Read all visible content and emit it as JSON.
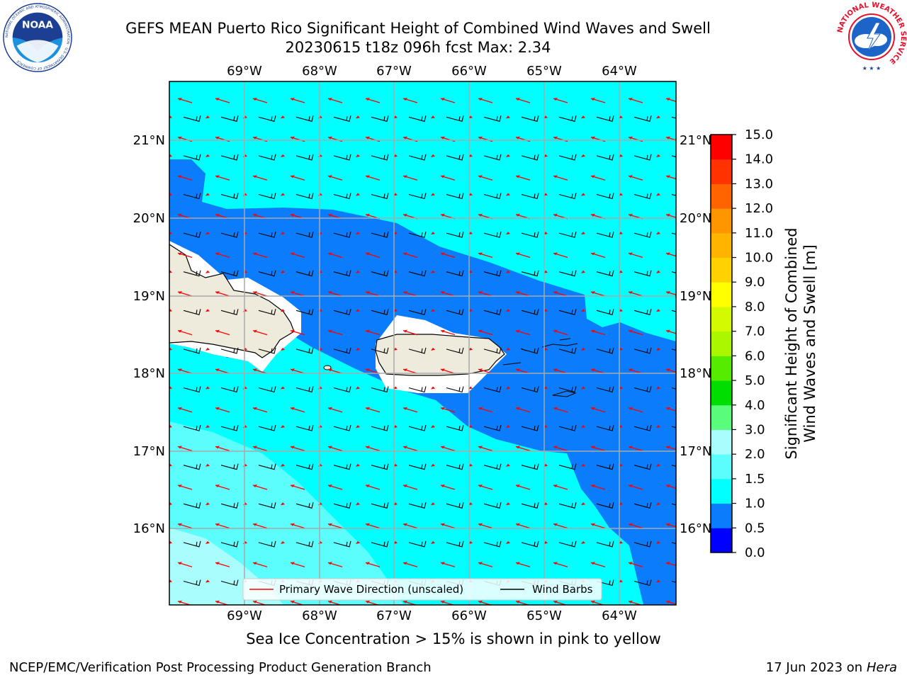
{
  "header": {
    "title_line_1": "GEFS MEAN Puerto Rico Significant Height of Combined Wind Waves and Swell",
    "title_line_2": "20230615 t18z 096h fcst   Max: 2.34"
  },
  "map": {
    "lon_ticks": [
      "69°W",
      "68°W",
      "67°W",
      "66°W",
      "65°W",
      "64°W"
    ],
    "lat_ticks": [
      "21°N",
      "20°N",
      "19°N",
      "18°N",
      "17°N",
      "16°N"
    ],
    "legend": {
      "wave_direction": "Primary Wave Direction (unscaled)",
      "wind_barbs": "Wind Barbs"
    },
    "colors": {
      "ocean_band_cyan": "#00ffff",
      "ocean_band_blue": "#0a7cfc",
      "ocean_band_light": "#aafdfd",
      "land": "#efebdc",
      "grid": "#aaaaaa",
      "wave_arrow": "#ff0000",
      "wind_barb": "#000000"
    }
  },
  "colorbar": {
    "label_line_1": "Significant Height of Combined",
    "label_line_2": "Wind Waves and Swell [m]",
    "ticks": [
      "0.0",
      "0.5",
      "1.0",
      "1.5",
      "2.0",
      "3.0",
      "4.0",
      "5.0",
      "6.0",
      "7.0",
      "8.0",
      "9.0",
      "10.0",
      "11.0",
      "12.0",
      "13.0",
      "14.0",
      "15.0"
    ],
    "colors": [
      "#0000ff",
      "#0a7cfc",
      "#00ffff",
      "#5bfdfd",
      "#aafdfd",
      "#5afc7b",
      "#00dd00",
      "#55ec00",
      "#aaf700",
      "#d4fa00",
      "#ffff00",
      "#ffd200",
      "#ffb400",
      "#ff9600",
      "#ff6400",
      "#ff3200",
      "#ff0000"
    ]
  },
  "note": "Sea Ice Concentration > 15% is shown in pink to yellow",
  "footer": {
    "left": "NCEP/EMC/Verification Post Processing Product Generation Branch",
    "right_prefix": "17 Jun 2023 on",
    "right_machine": "Hera"
  },
  "logos": {
    "noaa_text": "NOAA",
    "noaa_ring_text": "NATIONAL OCEANIC AND ATMOSPHERIC ADMINISTRATION · U.S. DEPARTMENT OF COMMERCE",
    "nws_ring_text": "NATIONAL WEATHER SERVICE"
  }
}
